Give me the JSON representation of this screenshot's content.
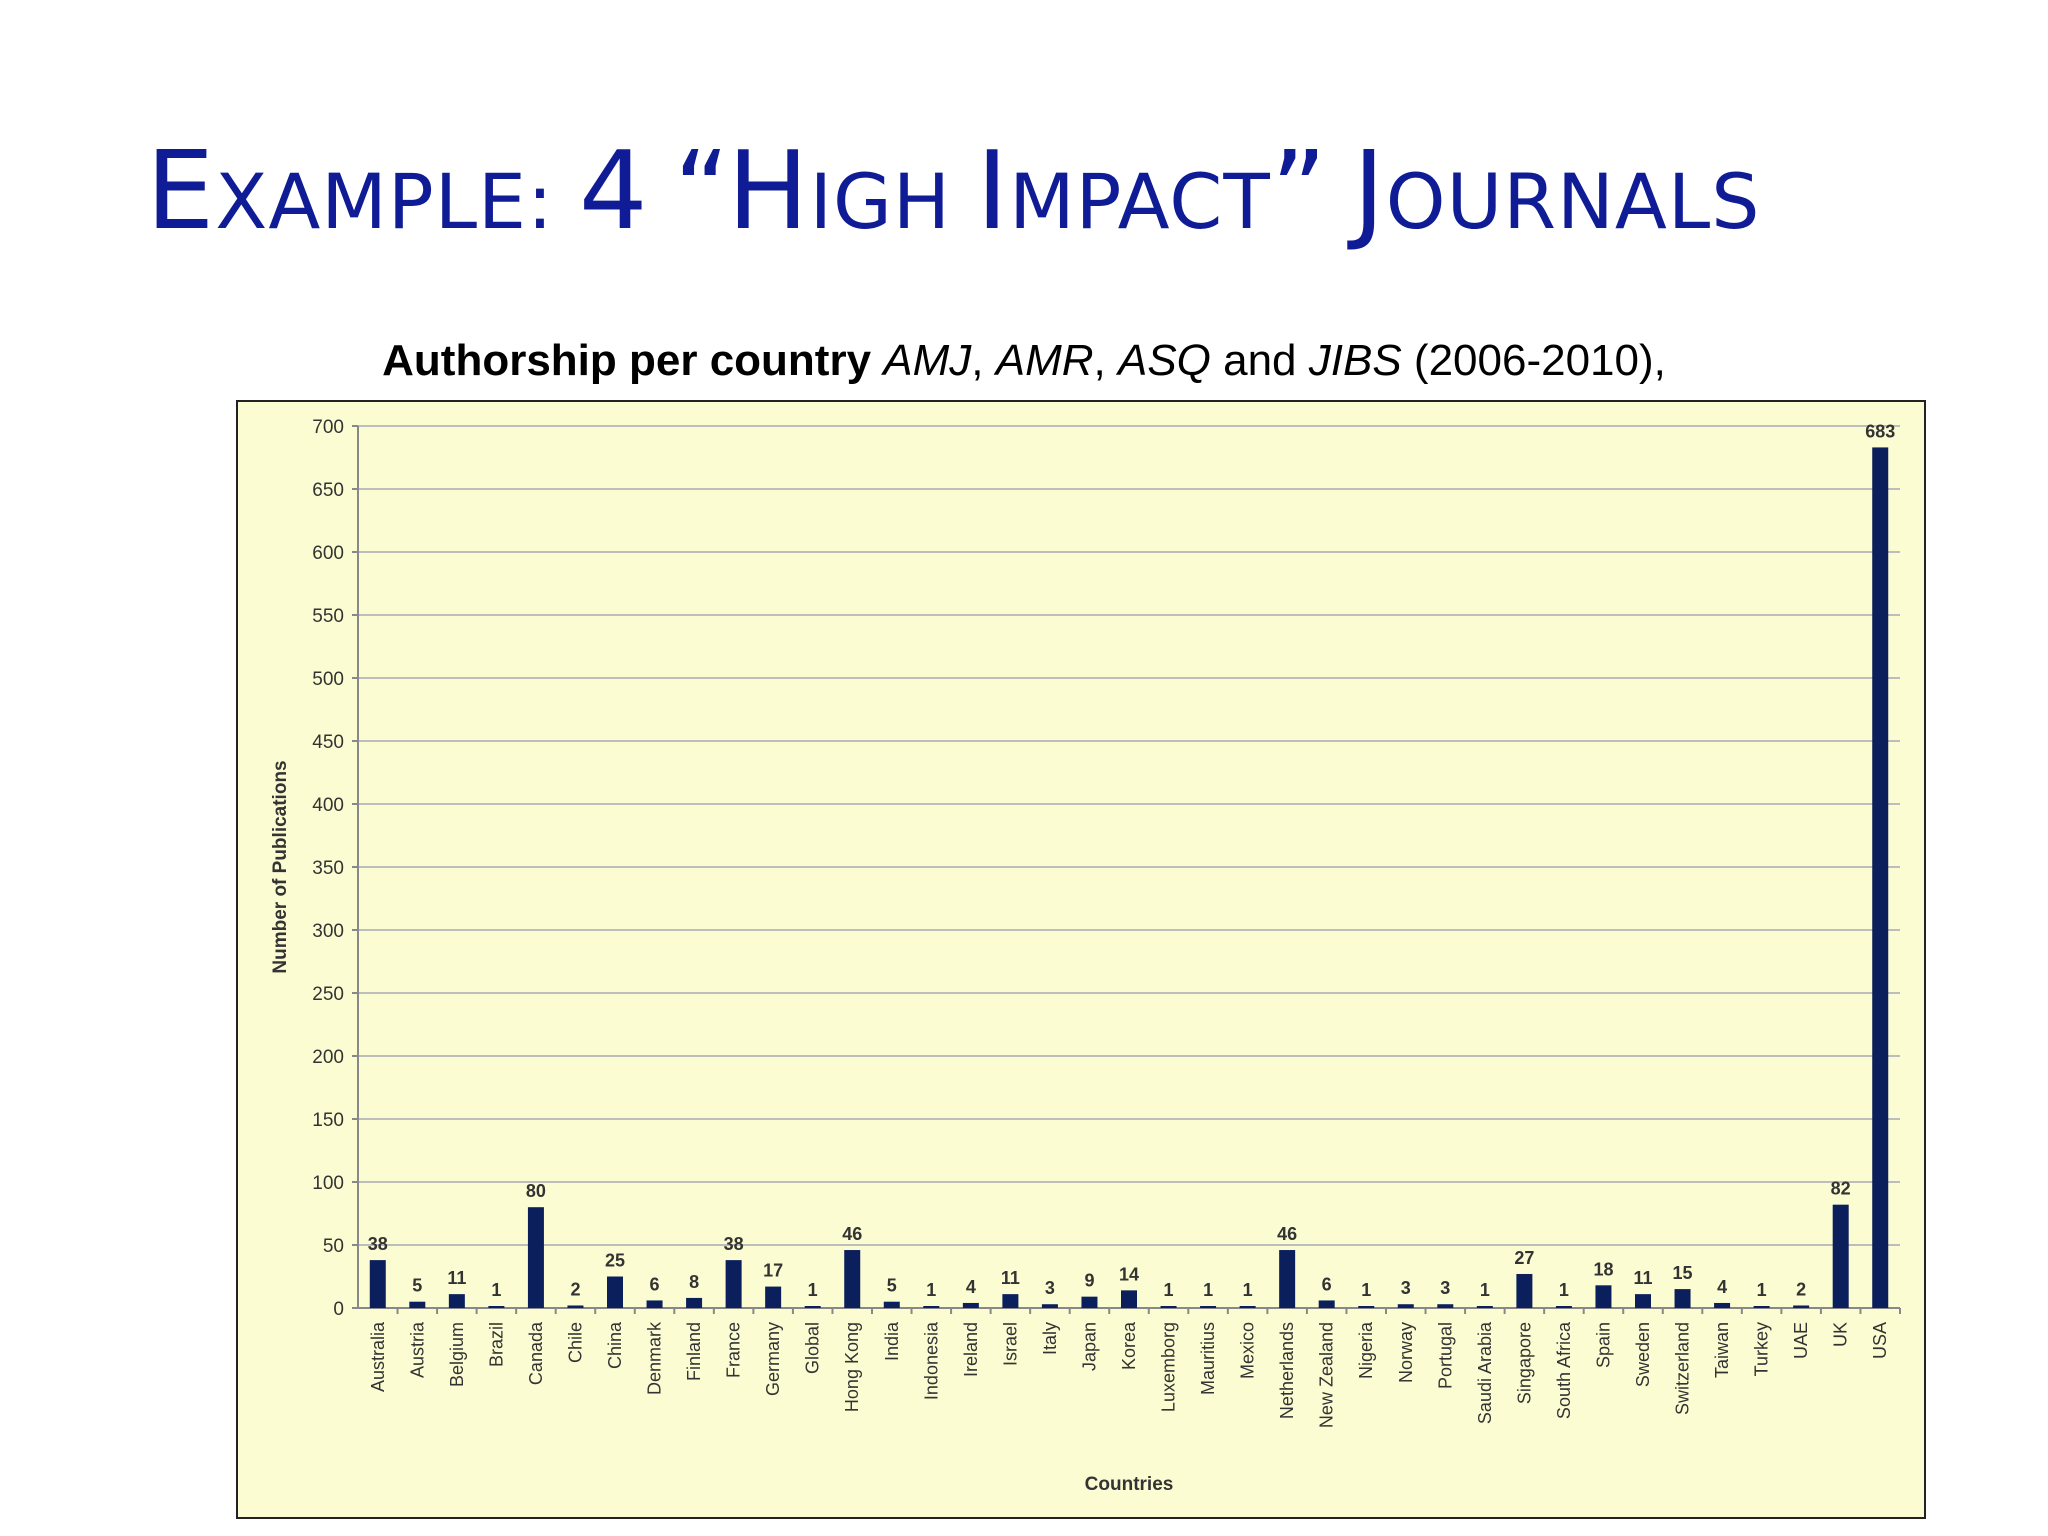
{
  "slide": {
    "title": {
      "e": "E",
      "xample": "XAMPLE",
      "colon": ":",
      "four": "4",
      "open_quote": "“",
      "h": "H",
      "igh": "IGH",
      "i": "I",
      "mpact": "MPACT",
      "close_quote": "”",
      "j": "J",
      "ournals": "OURNALS"
    },
    "subtitle": {
      "bold": "Authorship per country",
      "amj": "AMJ",
      "sep1": ", ",
      "amr": "AMR",
      "sep2": ", ",
      "asq": "ASQ",
      "and": " and ",
      "jibs": "JIBS",
      "tail": " (2006-2010),"
    }
  },
  "chart_data": {
    "type": "bar",
    "categories": [
      "Australia",
      "Austria",
      "Belgium",
      "Brazil",
      "Canada",
      "Chile",
      "China",
      "Denmark",
      "Finland",
      "France",
      "Germany",
      "Global",
      "Hong Kong",
      "India",
      "Indonesia",
      "Ireland",
      "Israel",
      "Italy",
      "Japan",
      "Korea",
      "Luxemborg",
      "Mauritius",
      "Mexico",
      "Netherlands",
      "New Zealand",
      "Nigeria",
      "Norway",
      "Portugal",
      "Saudi Arabia",
      "Singapore",
      "South Africa",
      "Spain",
      "Sweden",
      "Switzerland",
      "Taiwan",
      "Turkey",
      "UAE",
      "UK",
      "USA"
    ],
    "values": [
      38,
      5,
      11,
      1,
      80,
      2,
      25,
      6,
      8,
      38,
      17,
      1,
      46,
      5,
      1,
      4,
      11,
      3,
      9,
      14,
      1,
      1,
      1,
      46,
      6,
      1,
      3,
      3,
      1,
      27,
      1,
      18,
      11,
      15,
      4,
      1,
      2,
      82,
      683
    ],
    "xlabel": "Countries",
    "ylabel": "Number of Publications",
    "ylim": [
      0,
      700
    ],
    "ytick_step": 50,
    "grid": true,
    "bar_color": "#0a1f5c",
    "background": "#fcfcd2"
  }
}
